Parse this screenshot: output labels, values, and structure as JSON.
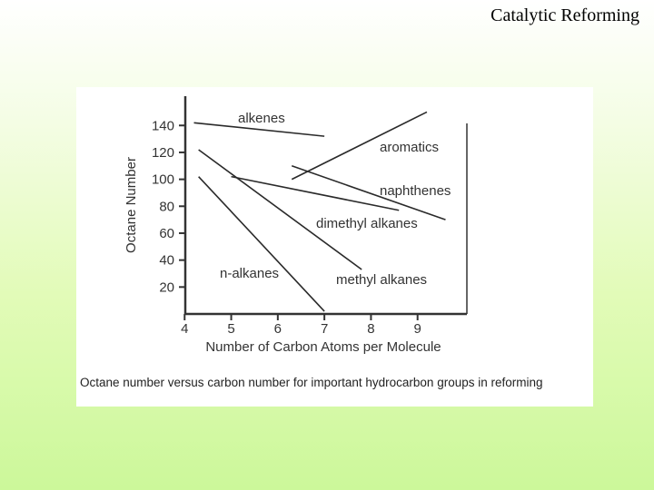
{
  "slide": {
    "title": "Catalytic Reforming"
  },
  "figure": {
    "caption": "Octane number versus carbon number for important hydrocarbon groups in reforming"
  },
  "chart_data": {
    "type": "line",
    "title": "",
    "xlabel": "Number of Carbon Atoms per Molecule",
    "ylabel": "Octane Number",
    "xlim": [
      3.8,
      10.0
    ],
    "ylim": [
      0,
      155
    ],
    "xticks": [
      "4",
      "5",
      "6",
      "7",
      "8",
      "9"
    ],
    "yticks": [
      "20",
      "40",
      "60",
      "80",
      "100",
      "120",
      "140"
    ],
    "grid": false,
    "legend": "none (series labeled directly on lines)",
    "series": [
      {
        "name": "alkenes",
        "x": [
          4.2,
          7.0
        ],
        "y": [
          142,
          132
        ]
      },
      {
        "name": "aromatics",
        "x": [
          6.3,
          9.2
        ],
        "y": [
          100,
          150
        ]
      },
      {
        "name": "naphthenes",
        "x": [
          6.3,
          9.6
        ],
        "y": [
          110,
          70
        ]
      },
      {
        "name": "dimethyl alkanes",
        "x": [
          5.0,
          8.6
        ],
        "y": [
          102,
          77
        ]
      },
      {
        "name": "methyl alkanes",
        "x": [
          4.3,
          7.8
        ],
        "y": [
          122,
          33
        ]
      },
      {
        "name": "n-alkanes",
        "x": [
          4.3,
          7.0
        ],
        "y": [
          102,
          2
        ]
      }
    ]
  }
}
